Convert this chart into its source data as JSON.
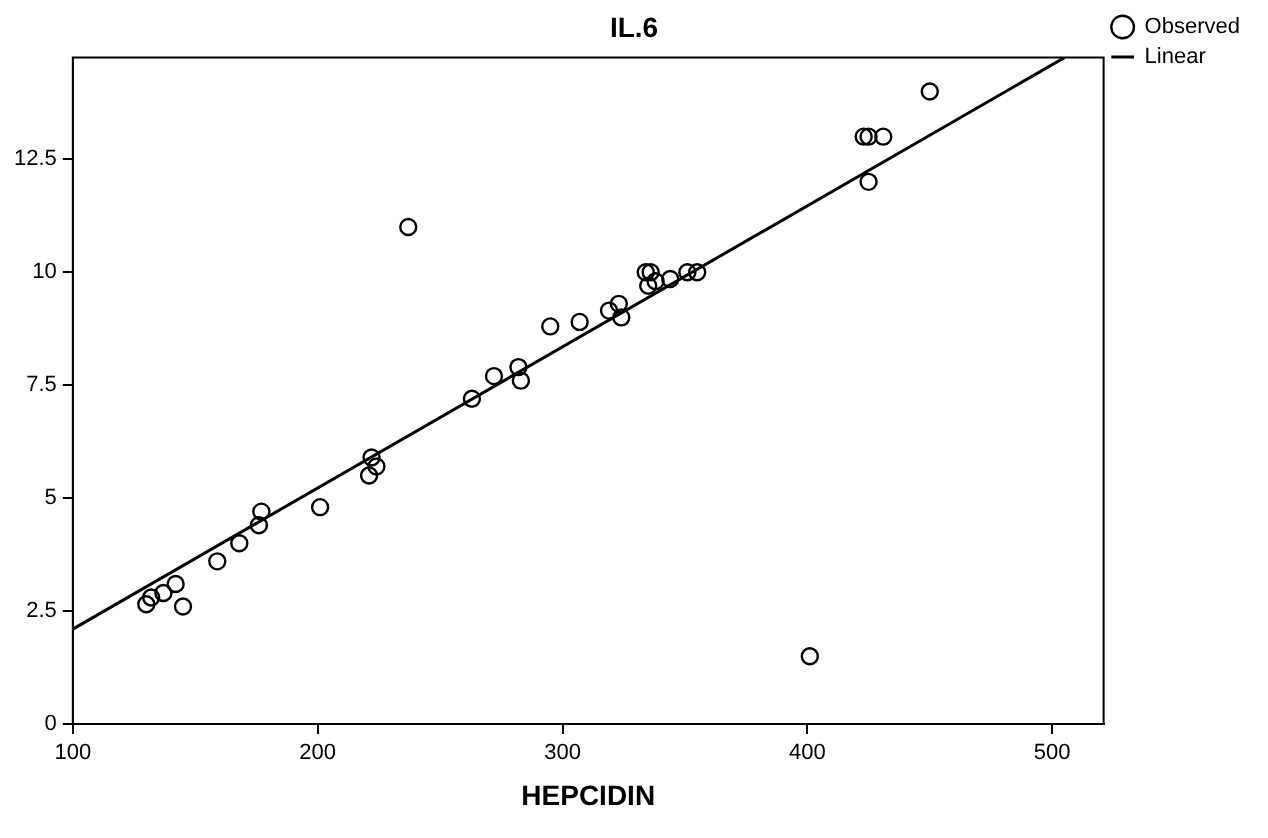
{
  "chart_data": {
    "type": "scatter",
    "title": "IL.6",
    "xlabel": "HEPCIDIN",
    "xlim": [
      100,
      521
    ],
    "ylim": [
      0,
      14.75
    ],
    "xticks": [
      100,
      200,
      300,
      400,
      500
    ],
    "yticks": [
      0,
      2.5,
      5,
      7.5,
      10,
      12.5
    ],
    "grid": false,
    "legend": "top right",
    "series": [
      {
        "name": "Observed",
        "marker": "circle",
        "color": "#000000",
        "x": [
          130,
          132,
          137,
          142,
          145,
          159,
          168,
          176,
          177,
          201,
          221,
          222,
          224,
          237,
          263,
          272,
          282,
          283,
          295,
          307,
          319,
          323,
          324,
          334,
          336,
          335,
          338,
          344,
          351,
          355,
          423,
          425,
          431,
          425,
          450,
          401
        ],
        "values": [
          2.65,
          2.8,
          2.9,
          3.1,
          2.6,
          3.6,
          4.0,
          4.4,
          4.7,
          4.8,
          5.5,
          5.9,
          5.7,
          11.0,
          7.2,
          7.7,
          7.9,
          7.6,
          8.8,
          8.9,
          9.15,
          9.3,
          9.0,
          10.0,
          10.0,
          9.7,
          9.8,
          9.85,
          10.0,
          10.0,
          13.0,
          13.0,
          13.0,
          12.0,
          14.0,
          1.5
        ]
      },
      {
        "name": "Linear",
        "type": "line",
        "marker": "none",
        "color": "#000000",
        "line_style": "solid",
        "x": [
          100,
          505
        ],
        "values": [
          2.1,
          14.75
        ]
      }
    ]
  }
}
